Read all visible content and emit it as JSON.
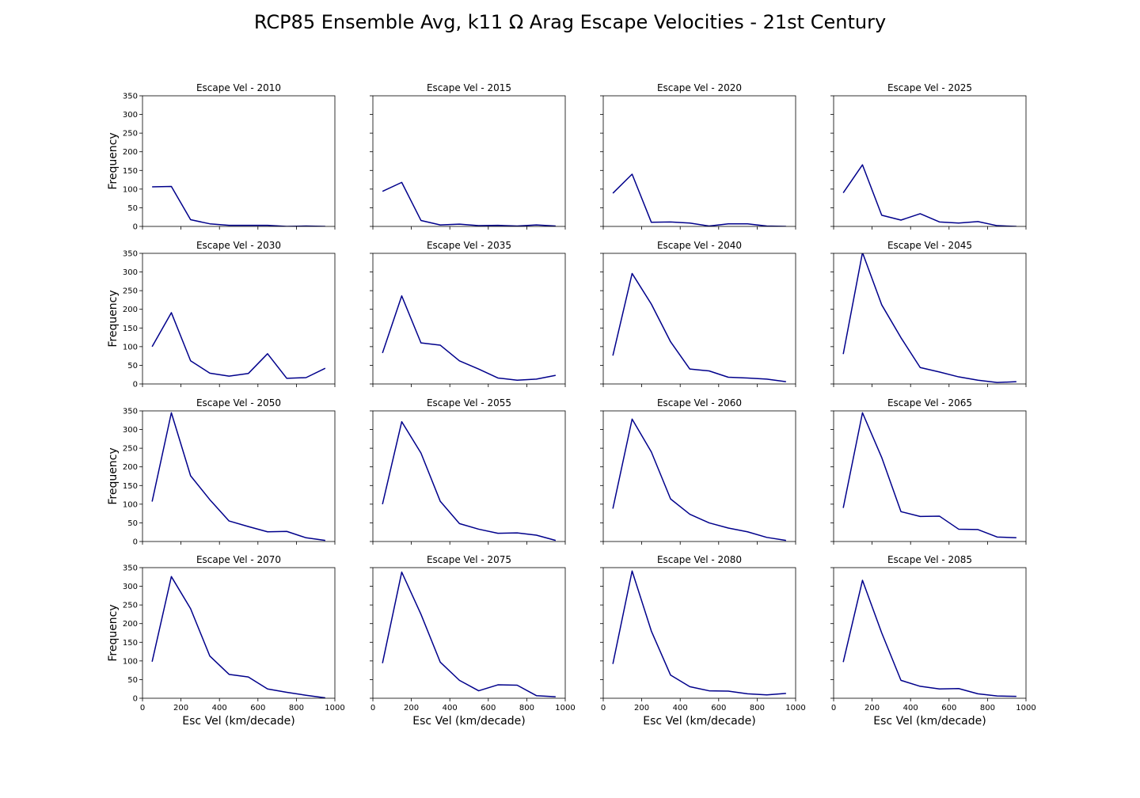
{
  "figure": {
    "suptitle": "RCP85 Ensemble Avg, k11 Ω Arag Escape Velocities - 21st Century",
    "line_color": "#00008b"
  },
  "chart_data": {
    "type": "line",
    "layout": "4x4 grid, shared axes",
    "xlabel": "Esc Vel (km/decade)",
    "ylabel": "Frequency",
    "xlim": [
      0,
      1000
    ],
    "ylim": [
      0,
      350
    ],
    "xticks": [
      0,
      200,
      400,
      600,
      800,
      1000
    ],
    "yticks": [
      0,
      50,
      100,
      150,
      200,
      250,
      300,
      350
    ],
    "x": [
      50,
      150,
      250,
      350,
      450,
      550,
      650,
      750,
      850,
      950
    ],
    "panels": [
      {
        "title": "Escape Vel - 2010",
        "values": [
          106,
          107,
          18,
          7,
          3,
          3,
          3,
          0,
          1,
          0
        ]
      },
      {
        "title": "Escape Vel - 2015",
        "values": [
          94,
          118,
          16,
          4,
          6,
          2,
          3,
          1,
          4,
          1
        ]
      },
      {
        "title": "Escape Vel - 2020",
        "values": [
          89,
          140,
          11,
          12,
          9,
          1,
          7,
          7,
          1,
          0
        ]
      },
      {
        "title": "Escape Vel - 2025",
        "values": [
          90,
          165,
          30,
          17,
          34,
          12,
          9,
          13,
          2,
          0
        ]
      },
      {
        "title": "Escape Vel - 2030",
        "values": [
          100,
          191,
          62,
          29,
          21,
          28,
          81,
          15,
          17,
          42
        ]
      },
      {
        "title": "Escape Vel - 2035",
        "values": [
          83,
          236,
          110,
          104,
          62,
          40,
          16,
          10,
          13,
          23
        ]
      },
      {
        "title": "Escape Vel - 2040",
        "values": [
          76,
          296,
          214,
          113,
          40,
          35,
          18,
          16,
          13,
          6
        ]
      },
      {
        "title": "Escape Vel - 2045",
        "values": [
          80,
          352,
          212,
          124,
          44,
          32,
          19,
          10,
          4,
          6
        ]
      },
      {
        "title": "Escape Vel - 2050",
        "values": [
          107,
          345,
          176,
          112,
          55,
          40,
          26,
          27,
          10,
          3
        ]
      },
      {
        "title": "Escape Vel - 2055",
        "values": [
          100,
          321,
          237,
          108,
          48,
          33,
          22,
          23,
          17,
          3
        ]
      },
      {
        "title": "Escape Vel - 2060",
        "values": [
          88,
          328,
          240,
          114,
          73,
          50,
          36,
          26,
          11,
          3
        ]
      },
      {
        "title": "Escape Vel - 2065",
        "values": [
          90,
          345,
          225,
          80,
          67,
          68,
          33,
          32,
          12,
          10
        ]
      },
      {
        "title": "Escape Vel - 2070",
        "values": [
          98,
          326,
          240,
          113,
          64,
          57,
          25,
          16,
          8,
          1
        ]
      },
      {
        "title": "Escape Vel - 2075",
        "values": [
          94,
          338,
          225,
          97,
          48,
          20,
          36,
          35,
          7,
          4
        ]
      },
      {
        "title": "Escape Vel - 2080",
        "values": [
          92,
          341,
          180,
          62,
          31,
          20,
          19,
          12,
          9,
          13
        ]
      },
      {
        "title": "Escape Vel - 2085",
        "values": [
          97,
          316,
          175,
          48,
          32,
          25,
          26,
          12,
          6,
          5
        ]
      }
    ]
  }
}
